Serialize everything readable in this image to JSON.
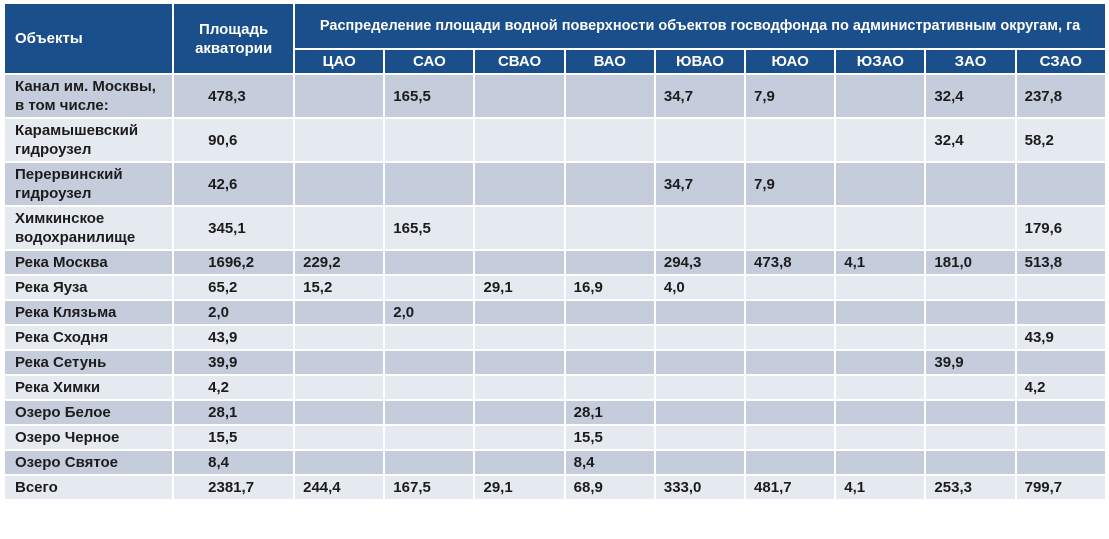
{
  "header": {
    "objects": "Объекты",
    "area": "Площадь акватории",
    "distribution": "Распределение площади водной поверхности объектов госводфонда по административным округам, га",
    "districts": [
      "ЦАО",
      "САО",
      "СВАО",
      "ВАО",
      "ЮВАО",
      "ЮАО",
      "ЮЗАО",
      "ЗАО",
      "СЗАО"
    ]
  },
  "table": {
    "rows": [
      [
        "Канал им. Москвы, в том числе:",
        "478,3",
        null,
        "165,5",
        null,
        null,
        "34,7",
        "7,9",
        null,
        "32,4",
        "237,8"
      ],
      [
        "Карамышевский гидроузел",
        "90,6",
        null,
        null,
        null,
        null,
        null,
        null,
        null,
        "32,4",
        "58,2"
      ],
      [
        "Перервинский гидроузел",
        "42,6",
        null,
        null,
        null,
        null,
        "34,7",
        "7,9",
        null,
        null,
        null
      ],
      [
        "Химкинское водохранилище",
        "345,1",
        null,
        "165,5",
        null,
        null,
        null,
        null,
        null,
        null,
        "179,6"
      ],
      [
        "Река Москва",
        "1696,2",
        "229,2",
        null,
        null,
        null,
        "294,3",
        "473,8",
        "4,1",
        "181,0",
        "513,8"
      ],
      [
        "Река Яуза",
        "65,2",
        "15,2",
        null,
        "29,1",
        "16,9",
        "4,0",
        null,
        null,
        null,
        null
      ],
      [
        "Река Клязьма",
        "2,0",
        null,
        "2,0",
        null,
        null,
        null,
        null,
        null,
        null,
        null
      ],
      [
        "Река Сходня",
        "43,9",
        null,
        null,
        null,
        null,
        null,
        null,
        null,
        null,
        "43,9"
      ],
      [
        "Река Сетунь",
        "39,9",
        null,
        null,
        null,
        null,
        null,
        null,
        null,
        "39,9",
        null
      ],
      [
        "Река Химки",
        "4,2",
        null,
        null,
        null,
        null,
        null,
        null,
        null,
        null,
        "4,2"
      ],
      [
        "Озеро Белое",
        "28,1",
        null,
        null,
        null,
        "28,1",
        null,
        null,
        null,
        null,
        null
      ],
      [
        "Озеро Черное",
        "15,5",
        null,
        null,
        null,
        "15,5",
        null,
        null,
        null,
        null,
        null
      ],
      [
        "Озеро Святое",
        "8,4",
        null,
        null,
        null,
        "8,4",
        null,
        null,
        null,
        null,
        null
      ],
      [
        "Всего",
        "2381,7",
        "244,4",
        "167,5",
        "29,1",
        "68,9",
        "333,0",
        "481,7",
        "4,1",
        "253,3",
        "799,7"
      ]
    ]
  }
}
